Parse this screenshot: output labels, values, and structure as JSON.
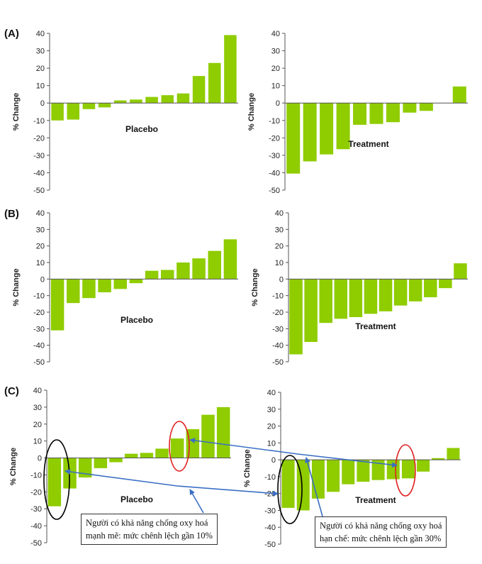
{
  "chart_data": [
    {
      "id": "A-placebo",
      "panel": "(A)",
      "type": "bar",
      "title": "Placebo",
      "ylabel": "% Change",
      "ylim": [
        -50,
        40
      ],
      "yticks": [
        40,
        30,
        20,
        10,
        0,
        -10,
        -20,
        -30,
        -40,
        -50
      ],
      "color": "#8fcc00",
      "values": [
        -10,
        -9.5,
        -3.5,
        -2.5,
        1.5,
        2,
        3.5,
        4.5,
        5.5,
        15.5,
        23,
        39
      ]
    },
    {
      "id": "A-treatment",
      "panel": "",
      "type": "bar",
      "title": "Treatment",
      "ylabel": "% Change",
      "ylim": [
        -50,
        40
      ],
      "yticks": [
        40,
        30,
        20,
        10,
        0,
        -10,
        -20,
        -30,
        -40,
        -50
      ],
      "color": "#8fcc00",
      "values": [
        -40.5,
        -33.5,
        -29.5,
        -26.5,
        -12.5,
        -12,
        -11,
        -5.5,
        -4.5,
        0,
        9.5
      ]
    },
    {
      "id": "B-placebo",
      "panel": "(B)",
      "type": "bar",
      "title": "Placebo",
      "ylabel": "% Change",
      "ylim": [
        -50,
        40
      ],
      "yticks": [
        40,
        30,
        20,
        10,
        0,
        -10,
        -20,
        -30,
        -40,
        -50
      ],
      "color": "#8fcc00",
      "values": [
        -31,
        -14.5,
        -11.5,
        -8,
        -6,
        -2.5,
        5,
        5.5,
        10,
        12.5,
        17,
        24
      ]
    },
    {
      "id": "B-treatment",
      "panel": "",
      "type": "bar",
      "title": "Treatment",
      "ylabel": "% Change",
      "ylim": [
        -50,
        40
      ],
      "yticks": [
        40,
        30,
        20,
        10,
        0,
        -10,
        -20,
        -30,
        -40,
        -50
      ],
      "color": "#8fcc00",
      "values": [
        -45.5,
        -38,
        -26.5,
        -24,
        -23,
        -21,
        -19.5,
        -16,
        -13.5,
        -11,
        -5.5,
        9.5
      ]
    },
    {
      "id": "C-placebo",
      "panel": "(C)",
      "type": "bar",
      "title": "Placebo",
      "ylabel": "% Change",
      "ylim": [
        -50,
        40
      ],
      "yticks": [
        40,
        30,
        20,
        10,
        0,
        -10,
        -20,
        -30,
        -40,
        -50
      ],
      "color": "#8fcc00",
      "values": [
        -28.5,
        -18,
        -11.5,
        -6,
        -2.5,
        2.5,
        3,
        5.5,
        11.5,
        17,
        25.5,
        30
      ]
    },
    {
      "id": "C-treatment",
      "panel": "",
      "type": "bar",
      "title": "Treatment",
      "ylabel": "% Change",
      "ylim": [
        -50,
        40
      ],
      "yticks": [
        40,
        30,
        20,
        10,
        0,
        -10,
        -20,
        -30,
        -40,
        -50
      ],
      "color": "#8fcc00",
      "values": [
        -28.5,
        -30,
        -23,
        -19,
        -14.5,
        -13,
        -12,
        -11.5,
        -11,
        -7,
        1,
        7
      ]
    }
  ],
  "annotations": {
    "note_left": {
      "line1": "Người có khả năng chống oxy hoá",
      "line2": "mạnh mẽ: mức chênh lệch gần 10%"
    },
    "note_right": {
      "line1": "Người có khả năng chống oxy hoá",
      "line2": "hạn chế: mức chênh lệch gần 30%"
    },
    "arrow_color": "#3a6fc4",
    "ellipse_red": "#e02020",
    "ellipse_black": "#000000"
  }
}
